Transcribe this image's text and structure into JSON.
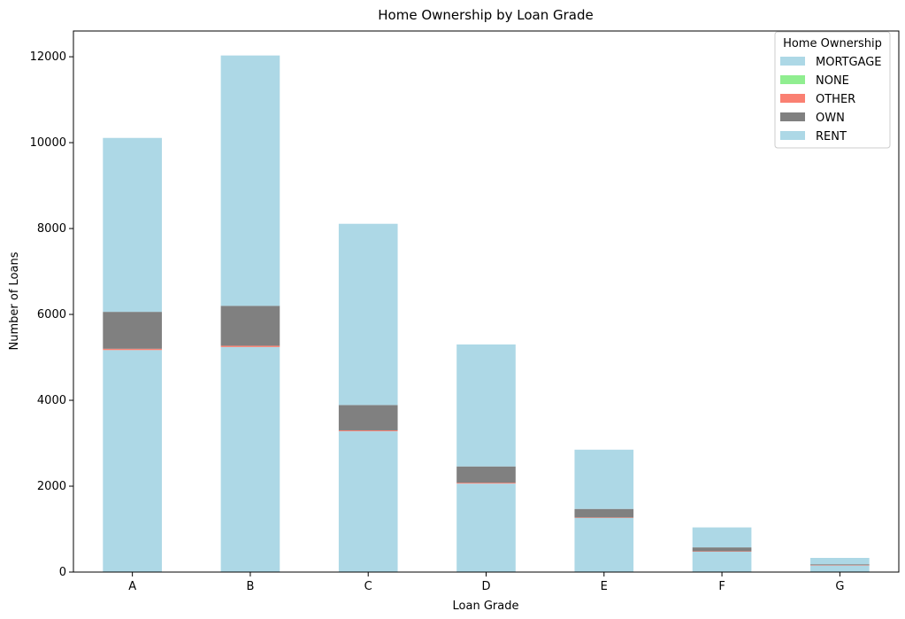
{
  "chart_data": {
    "type": "bar",
    "stacked": true,
    "title": "Home Ownership by Loan Grade",
    "xlabel": "Loan Grade",
    "ylabel": "Number of Loans",
    "categories": [
      "A",
      "B",
      "C",
      "D",
      "E",
      "F",
      "G"
    ],
    "ylim": [
      0,
      12600
    ],
    "yticks": [
      0,
      2000,
      4000,
      6000,
      8000,
      10000,
      12000
    ],
    "legend_title": "Home Ownership",
    "legend_position": "top-right",
    "grid": false,
    "series": [
      {
        "name": "MORTGAGE",
        "color": "#add8e6",
        "values": [
          5170,
          5240,
          3280,
          2060,
          1260,
          480,
          160
        ]
      },
      {
        "name": "NONE",
        "color": "#90ee90",
        "values": [
          0,
          0,
          0,
          0,
          0,
          0,
          0
        ]
      },
      {
        "name": "OTHER",
        "color": "#fa8072",
        "values": [
          30,
          30,
          20,
          20,
          10,
          5,
          2
        ]
      },
      {
        "name": "OWN",
        "color": "#808080",
        "values": [
          860,
          930,
          590,
          380,
          200,
          90,
          20
        ]
      },
      {
        "name": "RENT",
        "color": "#add8e6",
        "values": [
          4050,
          5830,
          4220,
          2840,
          1380,
          465,
          148
        ]
      }
    ]
  }
}
